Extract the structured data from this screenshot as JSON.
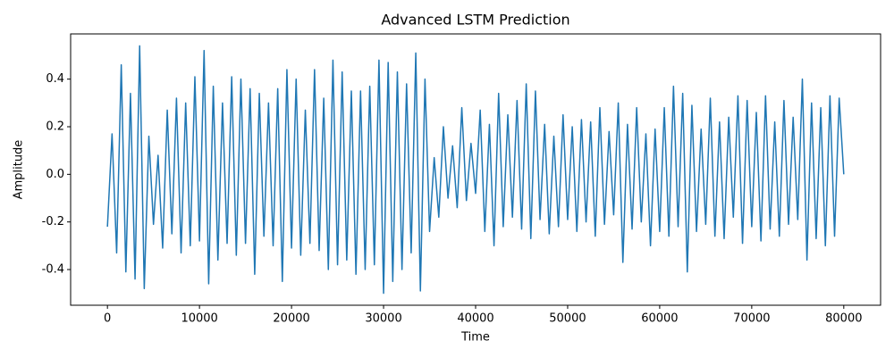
{
  "chart_data": {
    "type": "line",
    "title": "Advanced LSTM Prediction",
    "x_label": "Time",
    "y_label": "Amplitude",
    "color": "#1f77b4",
    "x": [
      0,
      500,
      1000,
      1500,
      2000,
      2500,
      3000,
      3500,
      4000,
      4500,
      5000,
      5500,
      6000,
      6500,
      7000,
      7500,
      8000,
      8500,
      9000,
      9500,
      10000,
      10500,
      11000,
      11500,
      12000,
      12500,
      13000,
      13500,
      14000,
      14500,
      15000,
      15500,
      16000,
      16500,
      17000,
      17500,
      18000,
      18500,
      19000,
      19500,
      20000,
      20500,
      21000,
      21500,
      22000,
      22500,
      23000,
      23500,
      24000,
      24500,
      25000,
      25500,
      26000,
      26500,
      27000,
      27500,
      28000,
      28500,
      29000,
      29500,
      30000,
      30500,
      31000,
      31500,
      32000,
      32500,
      33000,
      33500,
      34000,
      34500,
      35000,
      35500,
      36000,
      36500,
      37000,
      37500,
      38000,
      38500,
      39000,
      39500,
      40000,
      40500,
      41000,
      41500,
      42000,
      42500,
      43000,
      43500,
      44000,
      44500,
      45000,
      45500,
      46000,
      46500,
      47000,
      47500,
      48000,
      48500,
      49000,
      49500,
      50000,
      50500,
      51000,
      51500,
      52000,
      52500,
      53000,
      53500,
      54000,
      54500,
      55000,
      55500,
      56000,
      56500,
      57000,
      57500,
      58000,
      58500,
      59000,
      59500,
      60000,
      60500,
      61000,
      61500,
      62000,
      62500,
      63000,
      63500,
      64000,
      64500,
      65000,
      65500,
      66000,
      66500,
      67000,
      67500,
      68000,
      68500,
      69000,
      69500,
      70000,
      70500,
      71000,
      71500,
      72000,
      72500,
      73000,
      73500,
      74000,
      74500,
      75000,
      75500,
      76000,
      76500,
      77000,
      77500,
      78000,
      78500,
      79000,
      79500,
      80000
    ],
    "values": [
      -0.22,
      0.17,
      -0.33,
      0.46,
      -0.41,
      0.34,
      -0.44,
      0.54,
      -0.48,
      0.16,
      -0.21,
      0.08,
      -0.31,
      0.27,
      -0.25,
      0.32,
      -0.33,
      0.3,
      -0.3,
      0.41,
      -0.28,
      0.52,
      -0.46,
      0.37,
      -0.36,
      0.3,
      -0.29,
      0.41,
      -0.34,
      0.4,
      -0.29,
      0.36,
      -0.42,
      0.34,
      -0.26,
      0.3,
      -0.3,
      0.36,
      -0.45,
      0.44,
      -0.31,
      0.4,
      -0.34,
      0.27,
      -0.29,
      0.44,
      -0.32,
      0.32,
      -0.4,
      0.48,
      -0.38,
      0.43,
      -0.36,
      0.35,
      -0.42,
      0.35,
      -0.4,
      0.37,
      -0.38,
      0.48,
      -0.5,
      0.47,
      -0.45,
      0.43,
      -0.4,
      0.38,
      -0.33,
      0.51,
      -0.49,
      0.4,
      -0.24,
      0.07,
      -0.18,
      0.2,
      -0.1,
      0.12,
      -0.14,
      0.28,
      -0.11,
      0.13,
      -0.08,
      0.27,
      -0.24,
      0.21,
      -0.3,
      0.34,
      -0.22,
      0.25,
      -0.18,
      0.31,
      -0.23,
      0.38,
      -0.27,
      0.35,
      -0.19,
      0.21,
      -0.25,
      0.16,
      -0.22,
      0.25,
      -0.19,
      0.2,
      -0.24,
      0.23,
      -0.2,
      0.22,
      -0.26,
      0.28,
      -0.21,
      0.18,
      -0.17,
      0.3,
      -0.37,
      0.21,
      -0.23,
      0.28,
      -0.2,
      0.17,
      -0.3,
      0.19,
      -0.24,
      0.28,
      -0.26,
      0.37,
      -0.22,
      0.34,
      -0.41,
      0.29,
      -0.24,
      0.19,
      -0.21,
      0.32,
      -0.26,
      0.22,
      -0.27,
      0.24,
      -0.18,
      0.33,
      -0.29,
      0.31,
      -0.22,
      0.26,
      -0.28,
      0.33,
      -0.23,
      0.22,
      -0.26,
      0.31,
      -0.21,
      0.24,
      -0.19,
      0.4,
      -0.36,
      0.3,
      -0.27,
      0.28,
      -0.3,
      0.33,
      -0.26,
      0.32,
      0.0
    ],
    "xlim": [
      -4000,
      84000
    ],
    "xticks": [
      0,
      10000,
      20000,
      30000,
      40000,
      50000,
      60000,
      70000,
      80000
    ],
    "ylim": [
      -0.55,
      0.59
    ],
    "yticks": [
      -0.4,
      -0.2,
      {
        "value": 0,
        "label": "0.0"
      },
      0.2,
      0.4
    ]
  }
}
